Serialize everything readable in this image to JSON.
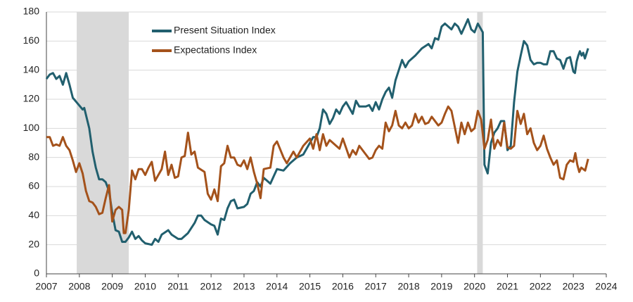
{
  "chart_data": {
    "type": "line",
    "xlim": [
      2007,
      2024
    ],
    "xticks": [
      2007,
      2008,
      2009,
      2010,
      2011,
      2012,
      2013,
      2014,
      2015,
      2016,
      2017,
      2018,
      2019,
      2020,
      2021,
      2022,
      2023,
      2024
    ],
    "ylim": [
      0,
      180
    ],
    "yticks": [
      0,
      20,
      40,
      60,
      80,
      100,
      120,
      140,
      160,
      180
    ],
    "grid": true,
    "legend": "upper left",
    "shaded_regions": [
      [
        2007.92,
        2009.5
      ],
      [
        2020.08,
        2020.25
      ]
    ],
    "shade_color": "#d9d9d9",
    "series": [
      {
        "name": "Present Situation Index",
        "color": "#215f6e",
        "x": [
          2007.0,
          2007.1,
          2007.2,
          2007.3,
          2007.4,
          2007.5,
          2007.6,
          2007.7,
          2007.8,
          2007.95,
          2008.1,
          2008.15,
          2008.3,
          2008.4,
          2008.5,
          2008.6,
          2008.7,
          2008.8,
          2008.9,
          2009.0,
          2009.1,
          2009.2,
          2009.3,
          2009.4,
          2009.5,
          2009.6,
          2009.7,
          2009.8,
          2009.9,
          2010.0,
          2010.2,
          2010.3,
          2010.4,
          2010.5,
          2010.7,
          2010.8,
          2011.0,
          2011.1,
          2011.3,
          2011.5,
          2011.6,
          2011.7,
          2011.8,
          2012.0,
          2012.1,
          2012.2,
          2012.3,
          2012.4,
          2012.5,
          2012.6,
          2012.7,
          2012.8,
          2013.0,
          2013.1,
          2013.2,
          2013.3,
          2013.4,
          2013.5,
          2013.6,
          2013.8,
          2013.9,
          2014.0,
          2014.2,
          2014.4,
          2014.6,
          2014.8,
          2015.0,
          2015.1,
          2015.2,
          2015.3,
          2015.4,
          2015.5,
          2015.6,
          2015.7,
          2015.8,
          2015.9,
          2016.0,
          2016.1,
          2016.2,
          2016.3,
          2016.4,
          2016.5,
          2016.7,
          2016.8,
          2016.9,
          2017.0,
          2017.1,
          2017.2,
          2017.3,
          2017.4,
          2017.5,
          2017.6,
          2017.7,
          2017.8,
          2017.9,
          2018.0,
          2018.2,
          2018.4,
          2018.6,
          2018.7,
          2018.8,
          2018.9,
          2019.0,
          2019.1,
          2019.3,
          2019.4,
          2019.5,
          2019.6,
          2019.7,
          2019.8,
          2019.9,
          2020.0,
          2020.1,
          2020.2,
          2020.25,
          2020.3,
          2020.4,
          2020.5,
          2020.6,
          2020.7,
          2020.8,
          2020.9,
          2021.0,
          2021.1,
          2021.2,
          2021.3,
          2021.4,
          2021.5,
          2021.6,
          2021.7,
          2021.8,
          2021.9,
          2022.0,
          2022.1,
          2022.2,
          2022.3,
          2022.4,
          2022.5,
          2022.6,
          2022.7,
          2022.8,
          2022.9,
          2023.0,
          2023.05,
          2023.1,
          2023.15,
          2023.2,
          2023.25,
          2023.3,
          2023.35,
          2023.45
        ],
        "values": [
          134,
          137,
          138,
          134,
          136,
          130,
          138,
          130,
          121,
          117,
          113,
          114,
          100,
          84,
          73,
          65,
          65,
          63,
          57,
          42,
          30,
          29,
          22,
          22,
          25,
          29,
          24,
          26,
          23,
          21,
          20,
          24,
          22,
          27,
          30,
          27,
          24,
          24,
          28,
          35,
          40,
          40,
          37,
          34,
          33,
          27,
          38,
          37,
          45,
          50,
          51,
          45,
          46,
          48,
          55,
          57,
          63,
          60,
          66,
          62,
          67,
          72,
          71,
          76,
          80,
          82,
          90,
          94,
          94,
          100,
          113,
          110,
          103,
          107,
          113,
          110,
          115,
          118,
          114,
          110,
          119,
          115,
          115,
          116,
          112,
          118,
          113,
          120,
          125,
          128,
          121,
          133,
          140,
          147,
          142,
          146,
          150,
          155,
          158,
          155,
          162,
          161,
          170,
          172,
          168,
          172,
          170,
          165,
          170,
          175,
          168,
          166,
          172,
          168,
          166,
          75,
          69,
          90,
          97,
          100,
          105,
          105,
          85,
          88,
          118,
          139,
          150,
          160,
          157,
          147,
          144,
          145,
          145,
          144,
          144,
          153,
          153,
          148,
          147,
          141,
          148,
          149,
          139,
          138,
          146,
          150,
          153,
          150,
          152,
          148,
          155
        ]
      },
      {
        "name": "Expectations Index",
        "color": "#a4521b",
        "x": [
          2007.0,
          2007.1,
          2007.2,
          2007.3,
          2007.4,
          2007.5,
          2007.6,
          2007.7,
          2007.8,
          2007.9,
          2008.0,
          2008.1,
          2008.2,
          2008.3,
          2008.4,
          2008.5,
          2008.6,
          2008.7,
          2008.8,
          2008.9,
          2009.0,
          2009.1,
          2009.2,
          2009.3,
          2009.35,
          2009.4,
          2009.5,
          2009.6,
          2009.7,
          2009.8,
          2009.9,
          2010.0,
          2010.1,
          2010.2,
          2010.3,
          2010.4,
          2010.5,
          2010.6,
          2010.7,
          2010.8,
          2010.9,
          2011.0,
          2011.1,
          2011.2,
          2011.3,
          2011.4,
          2011.5,
          2011.6,
          2011.8,
          2011.9,
          2012.0,
          2012.1,
          2012.2,
          2012.3,
          2012.4,
          2012.5,
          2012.6,
          2012.7,
          2012.8,
          2012.9,
          2013.0,
          2013.1,
          2013.2,
          2013.3,
          2013.4,
          2013.5,
          2013.6,
          2013.8,
          2013.9,
          2014.0,
          2014.2,
          2014.3,
          2014.5,
          2014.6,
          2014.8,
          2015.0,
          2015.1,
          2015.2,
          2015.3,
          2015.4,
          2015.5,
          2015.6,
          2015.8,
          2015.9,
          2016.0,
          2016.2,
          2016.3,
          2016.4,
          2016.5,
          2016.7,
          2016.8,
          2016.9,
          2017.0,
          2017.1,
          2017.2,
          2017.3,
          2017.4,
          2017.5,
          2017.6,
          2017.7,
          2017.8,
          2017.9,
          2018.0,
          2018.1,
          2018.2,
          2018.3,
          2018.4,
          2018.5,
          2018.6,
          2018.7,
          2018.9,
          2019.0,
          2019.1,
          2019.2,
          2019.3,
          2019.5,
          2019.6,
          2019.7,
          2019.8,
          2019.9,
          2020.0,
          2020.1,
          2020.2,
          2020.3,
          2020.4,
          2020.5,
          2020.6,
          2020.7,
          2020.8,
          2020.9,
          2021.0,
          2021.1,
          2021.2,
          2021.3,
          2021.4,
          2021.5,
          2021.6,
          2021.7,
          2021.8,
          2021.9,
          2022.0,
          2022.1,
          2022.2,
          2022.3,
          2022.4,
          2022.5,
          2022.6,
          2022.7,
          2022.8,
          2022.9,
          2023.0,
          2023.06,
          2023.12,
          2023.18,
          2023.24,
          2023.3,
          2023.36,
          2023.45
        ],
        "values": [
          94,
          94,
          88,
          89,
          88,
          94,
          88,
          85,
          78,
          70,
          76,
          69,
          57,
          50,
          49,
          46,
          41,
          42,
          52,
          61,
          36,
          44,
          46,
          44,
          28,
          28,
          44,
          71,
          65,
          72,
          72,
          68,
          73,
          77,
          64,
          68,
          72,
          84,
          68,
          75,
          66,
          67,
          80,
          81,
          97,
          82,
          84,
          73,
          70,
          55,
          51,
          58,
          50,
          74,
          76,
          88,
          80,
          80,
          75,
          74,
          78,
          72,
          80,
          70,
          62,
          52,
          72,
          73,
          88,
          91,
          80,
          76,
          84,
          80,
          88,
          93,
          86,
          96,
          85,
          96,
          88,
          92,
          88,
          86,
          93,
          80,
          85,
          82,
          88,
          82,
          79,
          80,
          85,
          88,
          86,
          104,
          98,
          102,
          112,
          102,
          100,
          104,
          100,
          102,
          110,
          104,
          108,
          103,
          104,
          108,
          102,
          104,
          110,
          115,
          112,
          90,
          104,
          96,
          104,
          98,
          100,
          112,
          106,
          86,
          92,
          106,
          86,
          92,
          88,
          104,
          87,
          86,
          88,
          112,
          103,
          110,
          96,
          100,
          90,
          85,
          88,
          95,
          86,
          80,
          75,
          78,
          66,
          65,
          75,
          78,
          77,
          83,
          75,
          70,
          73,
          72,
          71,
          79
        ]
      }
    ]
  }
}
